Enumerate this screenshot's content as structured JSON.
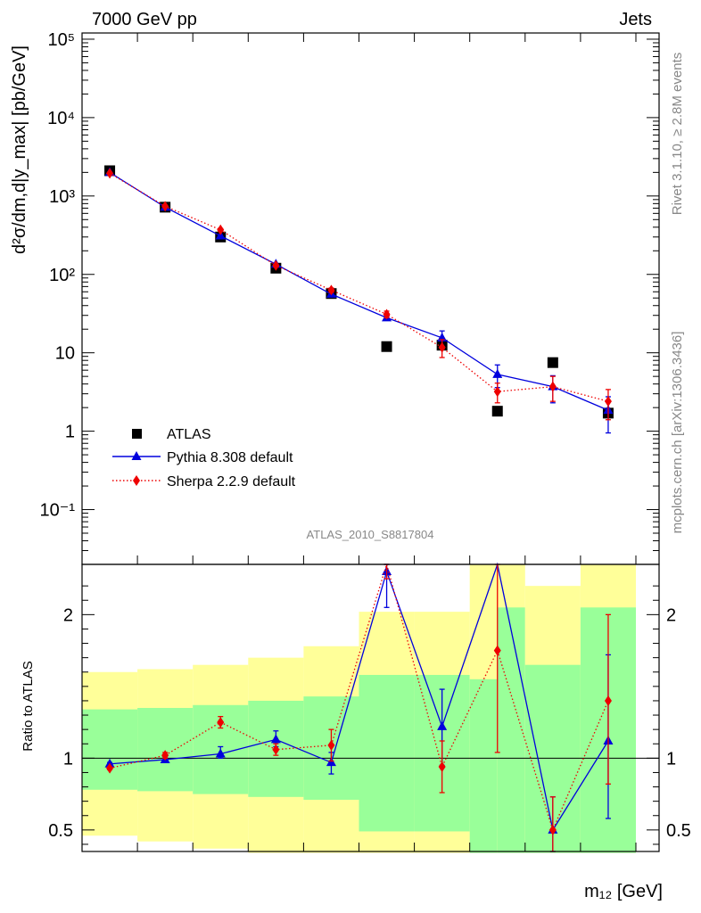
{
  "header": {
    "left": "7000 GeV pp",
    "right": "Jets"
  },
  "side_text": {
    "top": "Rivet 3.1.10, ≥ 2.8M events",
    "bottom": "mcplots.cern.ch [arXiv:1306.3436]"
  },
  "analysis_label": "ATLAS_2010_S8817804",
  "colors": {
    "data": "#000000",
    "pythia": "#0000dd",
    "sherpa": "#ee0000",
    "band_inner": "#99ff99",
    "band_outer": "#ffff99"
  },
  "chart_data": [
    {
      "type": "scatter",
      "panel": "main",
      "ylabel": "d²σ/dm,d|y_max| [pb/GeV]",
      "yscale": "log",
      "ylim": [
        0.02,
        120000
      ],
      "yticks": [
        {
          "value": 100000,
          "label": "10⁵"
        },
        {
          "value": 10000,
          "label": "10⁴"
        },
        {
          "value": 1000,
          "label": "10³"
        },
        {
          "value": 100,
          "label": "10²"
        },
        {
          "value": 10,
          "label": "10"
        },
        {
          "value": 1,
          "label": "1"
        },
        {
          "value": 0.1,
          "label": "10⁻¹"
        }
      ],
      "legend_position": "bottom-left",
      "series": [
        {
          "name": "ATLAS",
          "marker": "square",
          "points": [
            {
              "x": 1,
              "y": 2100
            },
            {
              "x": 2,
              "y": 720
            },
            {
              "x": 3,
              "y": 300
            },
            {
              "x": 4,
              "y": 120
            },
            {
              "x": 5,
              "y": 57
            },
            {
              "x": 6,
              "y": 12
            },
            {
              "x": 7,
              "y": 12.5
            },
            {
              "x": 8,
              "y": 1.8
            },
            {
              "x": 9,
              "y": 7.5
            },
            {
              "x": 10,
              "y": 1.7
            }
          ]
        },
        {
          "name": "Pythia 8.308 default",
          "marker": "triangle",
          "line": "solid",
          "points": [
            {
              "x": 1,
              "y": 2000,
              "err": 0
            },
            {
              "x": 2,
              "y": 720,
              "err": 0
            },
            {
              "x": 3,
              "y": 310,
              "err": 0
            },
            {
              "x": 4,
              "y": 135,
              "err": 0
            },
            {
              "x": 5,
              "y": 56,
              "err": 3
            },
            {
              "x": 6,
              "y": 28,
              "err": 2
            },
            {
              "x": 7,
              "y": 15.5,
              "err": 3.5
            },
            {
              "x": 8,
              "y": 5.3,
              "err": 1.7
            },
            {
              "x": 9,
              "y": 3.7,
              "err": 1.4
            },
            {
              "x": 10,
              "y": 1.85,
              "err": 0.9
            }
          ]
        },
        {
          "name": "Sherpa 2.2.9 default",
          "marker": "diamond",
          "line": "dotted",
          "points": [
            {
              "x": 1,
              "y": 1950,
              "err": 0
            },
            {
              "x": 2,
              "y": 740,
              "err": 0
            },
            {
              "x": 3,
              "y": 370,
              "err": 15
            },
            {
              "x": 4,
              "y": 130,
              "err": 5
            },
            {
              "x": 5,
              "y": 63,
              "err": 4
            },
            {
              "x": 6,
              "y": 31,
              "err": 3
            },
            {
              "x": 7,
              "y": 11.7,
              "err": 3
            },
            {
              "x": 8,
              "y": 3.2,
              "err": 0.9
            },
            {
              "x": 9,
              "y": 3.7,
              "err": 1.3
            },
            {
              "x": 10,
              "y": 2.4,
              "err": 1.0
            }
          ]
        }
      ]
    },
    {
      "type": "scatter",
      "panel": "ratio",
      "ylabel": "Ratio to ATLAS",
      "xlabel": "m₁₂ [GeV]",
      "ylim": [
        0.35,
        2.35
      ],
      "yticks": [
        {
          "value": 2,
          "label": "2"
        },
        {
          "value": 1,
          "label": "1"
        },
        {
          "value": 0.5,
          "label": "0.5"
        }
      ],
      "bands": [
        {
          "x0": 0.5,
          "x1": 1.5,
          "inner": [
            0.78,
            1.34
          ],
          "outer": [
            0.46,
            1.6
          ]
        },
        {
          "x0": 1.5,
          "x1": 2.5,
          "inner": [
            0.77,
            1.35
          ],
          "outer": [
            0.42,
            1.62
          ]
        },
        {
          "x0": 2.5,
          "x1": 3.5,
          "inner": [
            0.75,
            1.37
          ],
          "outer": [
            0.37,
            1.65
          ]
        },
        {
          "x0": 3.5,
          "x1": 4.5,
          "inner": [
            0.73,
            1.4
          ],
          "outer": [
            0.34,
            1.7
          ]
        },
        {
          "x0": 4.5,
          "x1": 5.5,
          "inner": [
            0.71,
            1.43
          ],
          "outer": [
            0.34,
            1.78
          ]
        },
        {
          "x0": 5.5,
          "x1": 6.5,
          "inner": [
            0.49,
            1.58
          ],
          "outer": [
            0.34,
            2.02
          ]
        },
        {
          "x0": 6.5,
          "x1": 7.5,
          "inner": [
            0.49,
            1.58
          ],
          "outer": [
            0.34,
            2.02
          ]
        },
        {
          "x0": 7.5,
          "x1": 8.0,
          "inner": [
            0.34,
            1.55
          ],
          "outer": [
            0.34,
            2.35
          ]
        },
        {
          "x0": 8.0,
          "x1": 8.5,
          "inner": [
            0.34,
            2.05
          ],
          "outer": [
            0.34,
            2.35
          ]
        },
        {
          "x0": 8.5,
          "x1": 9.5,
          "inner": [
            0.34,
            1.65
          ],
          "outer": [
            0.34,
            2.2
          ]
        },
        {
          "x0": 9.5,
          "x1": 10.5,
          "inner": [
            0.34,
            2.05
          ],
          "outer": [
            0.34,
            2.35
          ]
        }
      ],
      "series": [
        {
          "name": "Pythia 8.308 default",
          "points": [
            {
              "x": 1,
              "y": 0.96,
              "lo": 0.95,
              "hi": 0.97
            },
            {
              "x": 2,
              "y": 0.99,
              "lo": 0.97,
              "hi": 1.01
            },
            {
              "x": 3,
              "y": 1.03,
              "lo": 1.0,
              "hi": 1.08
            },
            {
              "x": 4,
              "y": 1.13,
              "lo": 1.08,
              "hi": 1.19
            },
            {
              "x": 5,
              "y": 0.97,
              "lo": 0.89,
              "hi": 1.04
            },
            {
              "x": 6,
              "y": 2.3,
              "lo": 2.05,
              "hi": 2.35
            },
            {
              "x": 7,
              "y": 1.22,
              "lo": 0.95,
              "hi": 1.48
            },
            {
              "x": 8,
              "y": 2.35,
              "lo": 2.35,
              "hi": 2.35
            },
            {
              "x": 9,
              "y": 0.5,
              "lo": 0.35,
              "hi": 0.73
            },
            {
              "x": 10,
              "y": 1.12,
              "lo": 0.58,
              "hi": 1.72
            }
          ]
        },
        {
          "name": "Sherpa 2.2.9 default",
          "points": [
            {
              "x": 1,
              "y": 0.93,
              "lo": 0.92,
              "hi": 0.94
            },
            {
              "x": 2,
              "y": 1.02,
              "lo": 1.0,
              "hi": 1.04
            },
            {
              "x": 3,
              "y": 1.25,
              "lo": 1.21,
              "hi": 1.29
            },
            {
              "x": 4,
              "y": 1.06,
              "lo": 1.02,
              "hi": 1.1
            },
            {
              "x": 5,
              "y": 1.09,
              "lo": 0.98,
              "hi": 1.2
            },
            {
              "x": 6,
              "y": 2.35,
              "lo": 2.25,
              "hi": 2.35
            },
            {
              "x": 7,
              "y": 0.94,
              "lo": 0.76,
              "hi": 1.12
            },
            {
              "x": 8,
              "y": 1.75,
              "lo": 1.04,
              "hi": 2.35
            },
            {
              "x": 9,
              "y": 0.5,
              "lo": 0.35,
              "hi": 0.73
            },
            {
              "x": 10,
              "y": 1.4,
              "lo": 0.82,
              "hi": 2.0
            }
          ]
        }
      ]
    }
  ]
}
